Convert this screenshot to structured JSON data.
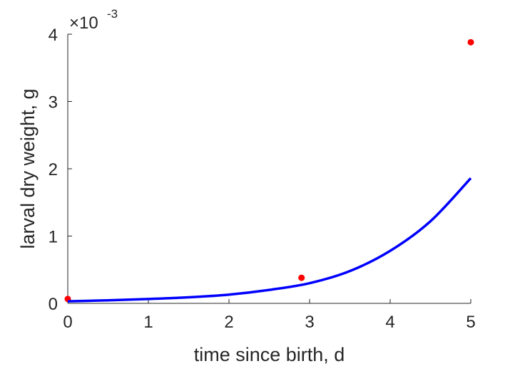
{
  "chart_data": {
    "type": "line",
    "title": "",
    "xlabel": "time since birth, d",
    "ylabel": "larval dry weight, g",
    "y_exponent_label": "×10",
    "y_exponent_power": "-3",
    "xlim": [
      0,
      5
    ],
    "ylim": [
      0,
      4
    ],
    "x_ticks": [
      0,
      1,
      2,
      3,
      4,
      5
    ],
    "y_ticks": [
      0,
      1,
      2,
      3,
      4
    ],
    "x_tick_labels": [
      "0",
      "1",
      "2",
      "3",
      "4",
      "5"
    ],
    "y_tick_labels": [
      "0",
      "1",
      "2",
      "3",
      "4"
    ],
    "grid": false,
    "legend": "none",
    "series": [
      {
        "kind": "scatter",
        "color": "#ff0000",
        "x": [
          0,
          2.9,
          5
        ],
        "y": [
          0.065,
          0.38,
          3.88
        ]
      },
      {
        "kind": "line",
        "color": "#0000ff",
        "x": [
          0,
          0.5,
          1,
          1.5,
          2,
          2.5,
          3,
          3.5,
          4,
          4.5,
          5
        ],
        "y": [
          0.03,
          0.045,
          0.065,
          0.09,
          0.13,
          0.2,
          0.3,
          0.48,
          0.78,
          1.22,
          1.86
        ]
      }
    ]
  }
}
